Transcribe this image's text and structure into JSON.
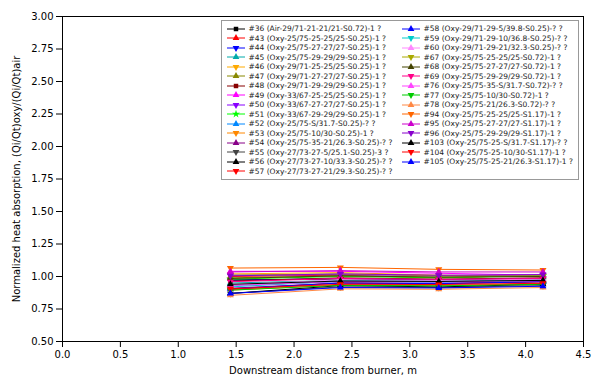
{
  "chart_data": {
    "type": "line",
    "xlabel": "Downstream distance from burner, m",
    "ylabel": "Normalized heat absorption, (Qi/Qt)oxy/(Qi/Qt)air",
    "x": [
      1.45,
      2.4,
      3.25,
      4.15
    ],
    "xlim": [
      0.0,
      4.5
    ],
    "ylim": [
      0.5,
      3.0
    ],
    "xticks": [
      {
        "value": 0.0,
        "label": "0.0"
      },
      0.5,
      {
        "value": 1.0,
        "label": "1.0"
      },
      1.5,
      {
        "value": 2.0,
        "label": "2.0"
      },
      2.5,
      {
        "value": 3.0,
        "label": "3.0"
      },
      3.5,
      {
        "value": 4.0,
        "label": "4.0"
      },
      4.5
    ],
    "yticks": [
      {
        "value": 0.5,
        "label": "0.50"
      },
      0.75,
      {
        "value": 1.0,
        "label": "1.00"
      },
      1.25,
      {
        "value": 1.5,
        "label": "1.50"
      },
      1.75,
      {
        "value": 2.0,
        "label": "2.00"
      },
      2.25,
      {
        "value": 2.5,
        "label": "2.50"
      },
      2.75,
      {
        "value": 3.0,
        "label": "3.00"
      }
    ],
    "grid": false,
    "legend": "upper right",
    "series": [
      {
        "name": "#36 (Air-29/71-21-21/21-S0.72)-1 ?",
        "color": "#000000",
        "marker": "square",
        "values": [
          0.975,
          0.98,
          0.975,
          0.98
        ]
      },
      {
        "name": "#43 (Oxy-25/75-25-25/25-S0.25)-1 ?",
        "color": "#ff0000",
        "marker": "triangle-up",
        "values": [
          1.0,
          1.01,
          0.99,
          1.01
        ]
      },
      {
        "name": "#44 (Oxy-25/75-27-27/27-S0.25)-1 ?",
        "color": "#0000ff",
        "marker": "triangle-down",
        "values": [
          0.97,
          0.985,
          0.975,
          0.985
        ]
      },
      {
        "name": "#45 (Oxy-25/75-29-29/29-S0.25)-1 ?",
        "color": "#00aaaa",
        "marker": "triangle-up",
        "values": [
          0.95,
          0.97,
          0.965,
          0.975
        ]
      },
      {
        "name": "#46 (Oxy-29/71-25-25/25-S0.25)-1 ?",
        "color": "#ffaa00",
        "marker": "triangle-down",
        "values": [
          1.02,
          1.03,
          1.01,
          1.0
        ]
      },
      {
        "name": "#47 (Oxy-29/71-27-27/27-S0.25)-1 ?",
        "color": "#888800",
        "marker": "triangle-up",
        "values": [
          0.99,
          1.005,
          0.995,
          1.005
        ]
      },
      {
        "name": "#48 (Oxy-29/71-29-29/29-S0.25)-1 ?",
        "color": "#880000",
        "marker": "square",
        "values": [
          0.965,
          0.99,
          0.98,
          0.99
        ]
      },
      {
        "name": "#49 (Oxy-33/67-25-25/25-S0.25)-1 ?",
        "color": "#ff00ff",
        "marker": "triangle-up",
        "values": [
          1.04,
          1.04,
          1.025,
          1.01
        ]
      },
      {
        "name": "#50 (Oxy-33/67-27-27/27-S0.25)-1 ?",
        "color": "#8800ff",
        "marker": "triangle-down",
        "values": [
          1.01,
          1.015,
          1.005,
          1.01
        ]
      },
      {
        "name": "#51 (Oxy-33/67-29-29/29-S0.25)-1 ?",
        "color": "#00ff00",
        "marker": "star",
        "values": [
          0.98,
          1.0,
          0.99,
          1.005
        ]
      },
      {
        "name": "#52 (Oxy-25/75-S/31.7-S0.25)-? ?",
        "color": "#0088ff",
        "marker": "triangle-up",
        "values": [
          0.93,
          0.96,
          0.955,
          0.965
        ]
      },
      {
        "name": "#53 (Oxy-25/75-10/30-S0.25)-1 ?",
        "color": "#ff8800",
        "marker": "triangle-down",
        "values": [
          0.895,
          0.935,
          0.93,
          0.945
        ]
      },
      {
        "name": "#54 (Oxy-25/75-35-21/26.3-S0.25)-? ?",
        "color": "#880088",
        "marker": "triangle-up",
        "values": [
          0.91,
          0.95,
          0.945,
          0.96
        ]
      },
      {
        "name": "#55 (Oxy-27/73-27-5/25.1-S0.25)-3 ?",
        "color": "#444444",
        "marker": "triangle-down",
        "values": [
          0.87,
          0.92,
          0.915,
          0.93
        ]
      },
      {
        "name": "#56 (Oxy-27/73-27-10/33.3-S0.25)-? ?",
        "color": "#000000",
        "marker": "triangle-up",
        "values": [
          0.87,
          0.93,
          0.92,
          0.94
        ]
      },
      {
        "name": "#57 (Oxy-27/73-27-21/29.3-S0.25)-? ?",
        "color": "#ff0000",
        "marker": "triangle-down",
        "values": [
          0.9,
          0.95,
          0.945,
          0.96
        ]
      },
      {
        "name": "#58 (Oxy-29/71-29-5/39.8-S0.25)-? ?",
        "color": "#0000ff",
        "marker": "triangle-up",
        "values": [
          0.905,
          0.95,
          0.945,
          0.96
        ]
      },
      {
        "name": "#59 (Oxy-29/71-29-10/36.8-S0.25)-? ?",
        "color": "#00cccc",
        "marker": "triangle-down",
        "values": [
          0.92,
          0.965,
          0.96,
          0.97
        ]
      },
      {
        "name": "#60 (Oxy-29/71-29-21/32.3-S0.25)-? ?",
        "color": "#ff88ff",
        "marker": "triangle-up",
        "values": [
          0.935,
          0.975,
          0.97,
          0.98
        ]
      },
      {
        "name": "#67 (Oxy-25/75-25-25/25-S0.72)-1 ?",
        "color": "#aaaa00",
        "marker": "triangle-down",
        "values": [
          1.01,
          1.02,
          1.005,
          1.005
        ]
      },
      {
        "name": "#68 (Oxy-25/75-27-27/27-S0.72)-1 ?",
        "color": "#444400",
        "marker": "triangle-up",
        "values": [
          0.985,
          1.005,
          0.995,
          1.0
        ]
      },
      {
        "name": "#69 (Oxy-25/75-29-29/29-S0.72)-1 ?",
        "color": "#ff0088",
        "marker": "triangle-down",
        "values": [
          0.96,
          0.985,
          0.978,
          0.985
        ]
      },
      {
        "name": "#76 (Oxy-25/75-35-S/31.7-S0.72)-? ?",
        "color": "#ff44ff",
        "marker": "triangle-up",
        "values": [
          0.93,
          0.962,
          0.958,
          0.968
        ]
      },
      {
        "name": "#77 (Oxy-25/75-10/30-S0.72)-1 ?",
        "color": "#00cc00",
        "marker": "triangle-down",
        "values": [
          0.895,
          0.932,
          0.928,
          0.94
        ]
      },
      {
        "name": "#78 (Oxy-25/75-21/26.3-S0.72)-? ?",
        "color": "#ff8844",
        "marker": "triangle-up",
        "values": [
          0.855,
          0.905,
          0.902,
          0.915
        ]
      },
      {
        "name": "#94 (Oxy-25/75-25-25/25-S1.17)-1 ?",
        "color": "#ff6600",
        "marker": "triangle-down",
        "values": [
          1.065,
          1.07,
          1.055,
          1.05
        ]
      },
      {
        "name": "#95 (Oxy-25/75-27-27/27-S1.17)-1 ?",
        "color": "#cc00cc",
        "marker": "triangle-up",
        "values": [
          1.035,
          1.045,
          1.035,
          1.035
        ]
      },
      {
        "name": "#96 (Oxy-25/75-29-29/29-S1.17)-1 ?",
        "color": "#8800cc",
        "marker": "triangle-down",
        "values": [
          1.005,
          1.02,
          1.01,
          1.015
        ]
      },
      {
        "name": "#103 (Oxy-25/75-25-S/31.7-S1.17)-? ?",
        "color": "#000000",
        "marker": "triangle-up",
        "values": [
          0.94,
          0.965,
          0.962,
          0.97
        ]
      },
      {
        "name": "#104 (Oxy-25/75-25-10/30-S1.17)-1 ?",
        "color": "#ff0000",
        "marker": "triangle-down",
        "values": [
          0.905,
          0.94,
          0.938,
          0.948
        ]
      },
      {
        "name": "#105 (Oxy-25/75-25-21/26.3-S1.17)-1 ?",
        "color": "#0000ff",
        "marker": "triangle-up",
        "values": [
          0.87,
          0.915,
          0.912,
          0.925
        ]
      }
    ]
  }
}
